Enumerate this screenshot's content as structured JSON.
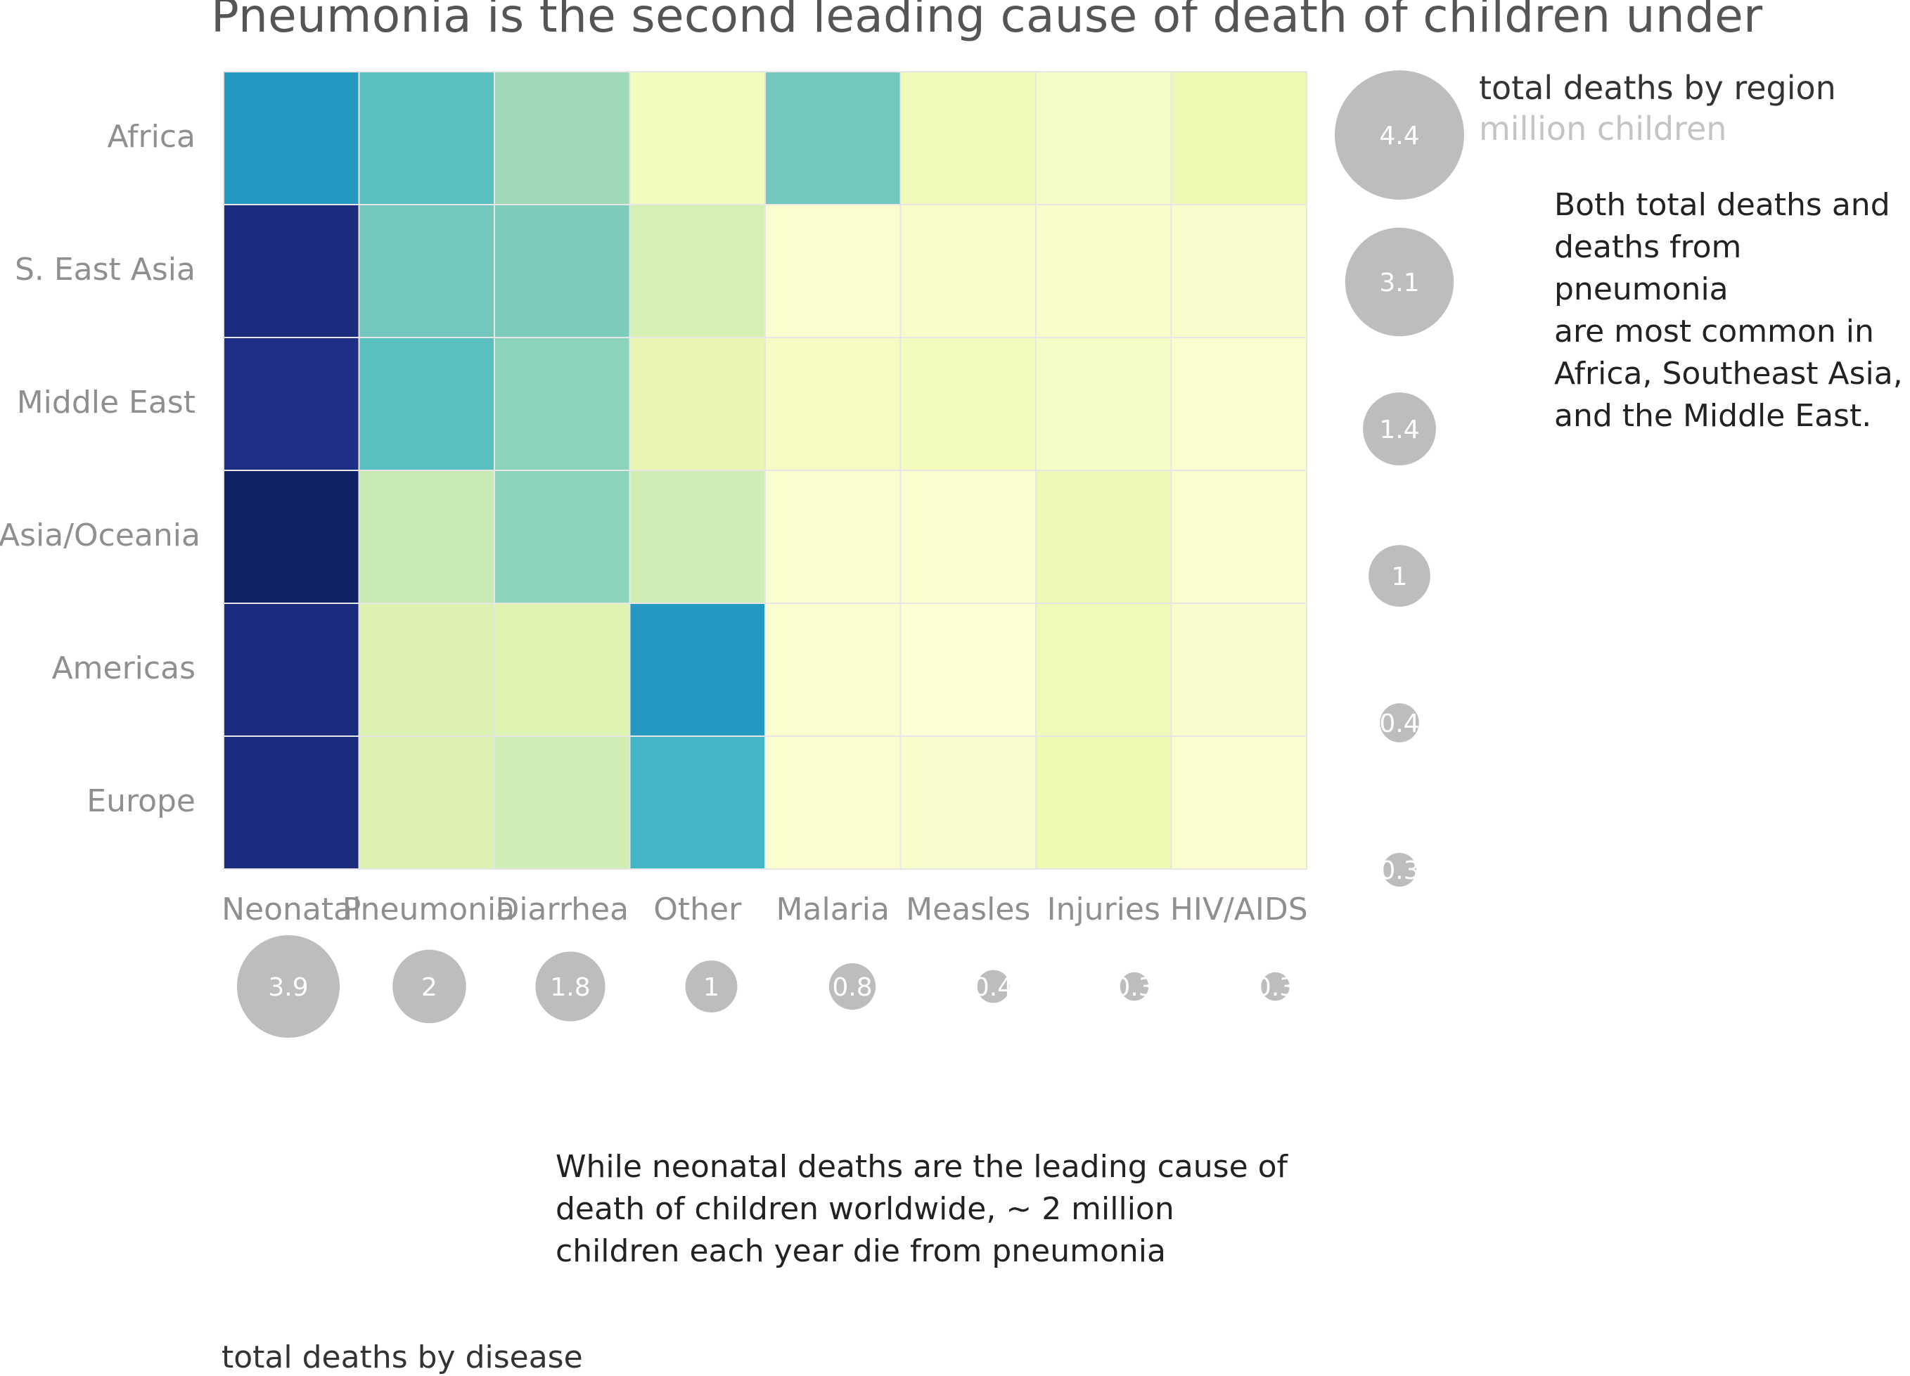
{
  "chart_data": {
    "type": "heatmap",
    "title": "Pneumonia is the second leading cause of death of children under",
    "rows": [
      "Africa",
      "S. East Asia",
      "Middle East",
      "Asia/Oceania",
      "Americas",
      "Europe"
    ],
    "columns": [
      "Neonatal",
      "Pneumonia",
      "Diarrhea",
      "Other",
      "Malaria",
      "Measles",
      "Injuries",
      "HIV/AIDS"
    ],
    "values": [
      [
        0.6,
        0.45,
        0.32,
        0.08,
        0.4,
        0.1,
        0.06,
        0.12
      ],
      [
        0.92,
        0.4,
        0.38,
        0.2,
        0.03,
        0.05,
        0.05,
        0.04
      ],
      [
        0.9,
        0.45,
        0.35,
        0.14,
        0.07,
        0.08,
        0.06,
        0.03
      ],
      [
        0.97,
        0.24,
        0.35,
        0.22,
        0.03,
        0.03,
        0.11,
        0.03
      ],
      [
        0.92,
        0.18,
        0.17,
        0.6,
        0.03,
        0.02,
        0.1,
        0.04
      ],
      [
        0.92,
        0.18,
        0.22,
        0.5,
        0.03,
        0.04,
        0.12,
        0.03
      ]
    ],
    "color_scale": [
      "#ffffd9",
      "#edf8b1",
      "#c7e9b4",
      "#7fcdbb",
      "#41b6c4",
      "#1d91c0",
      "#225ea8",
      "#253494",
      "#081d58"
    ],
    "row_totals": {
      "label": "total deaths by region",
      "unit": "million children",
      "values": [
        4.4,
        3.1,
        1.4,
        1,
        0.4,
        0.3
      ]
    },
    "column_totals": {
      "label": "total deaths by disease",
      "values": [
        3.9,
        2,
        1.8,
        1,
        0.8,
        0.4,
        0.3,
        0.3
      ]
    },
    "bubble_color": "#bdbdbe",
    "annotations": {
      "region_note": "Both total deaths and\ndeaths from pneumonia\nare most common in\nAfrica, Southeast Asia,\nand the Middle East.",
      "disease_note": "While neonatal deaths are the leading cause of\ndeath of children worldwide, ~ 2 million\nchildren each year die from pneumonia"
    }
  }
}
